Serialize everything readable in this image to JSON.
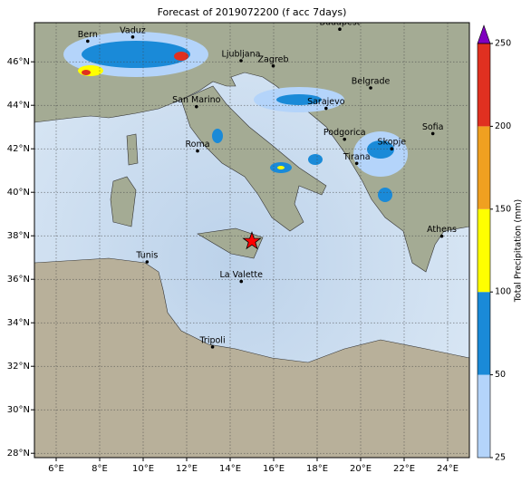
{
  "chart_data": {
    "type": "map",
    "title": "Forecast of 2019072200 (f acc 7days)",
    "xlim": [
      5,
      25
    ],
    "ylim": [
      27.8,
      47.8
    ],
    "xticks": [
      {
        "value": 6,
        "label": "6°E"
      },
      {
        "value": 8,
        "label": "8°E"
      },
      {
        "value": 10,
        "label": "10°E"
      },
      {
        "value": 12,
        "label": "12°E"
      },
      {
        "value": 14,
        "label": "14°E"
      },
      {
        "value": 16,
        "label": "16°E"
      },
      {
        "value": 18,
        "label": "18°E"
      },
      {
        "value": 20,
        "label": "20°E"
      },
      {
        "value": 22,
        "label": "22°E"
      },
      {
        "value": 24,
        "label": "24°E"
      }
    ],
    "yticks": [
      {
        "value": 28,
        "label": "28°N"
      },
      {
        "value": 30,
        "label": "30°N"
      },
      {
        "value": 32,
        "label": "32°N"
      },
      {
        "value": 34,
        "label": "34°N"
      },
      {
        "value": 36,
        "label": "36°N"
      },
      {
        "value": 38,
        "label": "38°N"
      },
      {
        "value": 40,
        "label": "40°N"
      },
      {
        "value": 42,
        "label": "42°N"
      },
      {
        "value": 44,
        "label": "44°N"
      },
      {
        "value": 46,
        "label": "46°N"
      }
    ],
    "grid": true,
    "cities": [
      {
        "name": "Bern",
        "lon": 7.45,
        "lat": 46.95
      },
      {
        "name": "Vaduz",
        "lon": 9.52,
        "lat": 47.14
      },
      {
        "name": "Budapest",
        "lon": 19.04,
        "lat": 47.5
      },
      {
        "name": "Ljubljana",
        "lon": 14.5,
        "lat": 46.05
      },
      {
        "name": "Zagreb",
        "lon": 15.98,
        "lat": 45.81
      },
      {
        "name": "Belgrade",
        "lon": 20.46,
        "lat": 44.8
      },
      {
        "name": "San Marino",
        "lon": 12.45,
        "lat": 43.94
      },
      {
        "name": "Sarajevo",
        "lon": 18.41,
        "lat": 43.86
      },
      {
        "name": "Sofia",
        "lon": 23.32,
        "lat": 42.7
      },
      {
        "name": "Podgorica",
        "lon": 19.26,
        "lat": 42.44
      },
      {
        "name": "Skopje",
        "lon": 21.43,
        "lat": 42.0
      },
      {
        "name": "Roma",
        "lon": 12.5,
        "lat": 41.9
      },
      {
        "name": "Tirana",
        "lon": 19.82,
        "lat": 41.33
      },
      {
        "name": "Athens",
        "lon": 23.73,
        "lat": 37.98
      },
      {
        "name": "Tunis",
        "lon": 10.18,
        "lat": 36.8
      },
      {
        "name": "La Valette",
        "lon": 14.51,
        "lat": 35.9
      },
      {
        "name": "Tripoli",
        "lon": 13.19,
        "lat": 32.89
      }
    ],
    "marker": {
      "lon": 15.0,
      "lat": 37.75,
      "color": "#ff0000"
    },
    "colorbar": {
      "label": "Total Precipitation (mm)",
      "levels": [
        25,
        50,
        100,
        150,
        200,
        250
      ],
      "colors": [
        "#b4d4fa",
        "#1a8ad8",
        "#ffff00",
        "#f0a020",
        "#e03020"
      ],
      "over_color": "#8000c0"
    }
  }
}
